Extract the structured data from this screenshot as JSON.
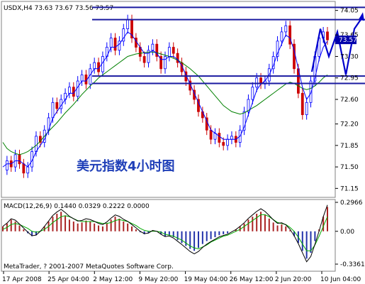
{
  "chart_data": {
    "type": "line",
    "symbol_line": "USDX,H4  73.63 73.67 73.56 73.57",
    "annotation": "美元指数4小时图",
    "price_ticks": [
      "74.05",
      "73.65",
      "73.30",
      "72.95",
      "72.60",
      "72.20",
      "71.85",
      "71.50",
      "71.15"
    ],
    "price_range": [
      71.05,
      74.15
    ],
    "current_price": "73.57",
    "current_price_value": 73.57,
    "price_labels_partial": [
      "73.65"
    ],
    "x_ticks": [
      "17 Apr 2008",
      "25 Apr 04:00",
      "2 May 12:00",
      "9 May 20:00",
      "19 May 04:00",
      "26 May 12:00",
      "2 Jun 20:00",
      "10 Jun 04:00"
    ],
    "close_series": [
      71.45,
      71.6,
      71.5,
      71.7,
      71.55,
      71.4,
      71.5,
      71.75,
      72.0,
      71.9,
      72.1,
      72.3,
      72.55,
      72.45,
      72.6,
      72.7,
      72.8,
      72.65,
      72.9,
      73.0,
      72.85,
      73.1,
      73.2,
      73.05,
      73.3,
      73.45,
      73.6,
      73.4,
      73.55,
      73.75,
      73.9,
      73.6,
      73.45,
      73.3,
      73.2,
      73.4,
      73.5,
      73.3,
      73.1,
      73.3,
      73.45,
      73.35,
      73.2,
      73.05,
      72.9,
      72.75,
      72.6,
      72.4,
      72.3,
      72.1,
      71.95,
      72.05,
      71.9,
      71.85,
      71.95,
      72.0,
      71.9,
      72.1,
      72.4,
      72.6,
      72.8,
      72.95,
      72.85,
      72.9,
      73.1,
      73.3,
      73.55,
      73.7,
      73.8,
      73.5,
      73.1,
      72.7,
      72.35,
      72.55,
      72.9,
      73.3,
      73.6,
      73.7,
      73.57
    ],
    "ma_fast": [
      71.5,
      71.55,
      71.55,
      71.6,
      71.6,
      71.55,
      71.5,
      71.6,
      71.75,
      71.85,
      71.95,
      72.1,
      72.3,
      72.4,
      72.5,
      72.6,
      72.7,
      72.7,
      72.8,
      72.9,
      72.9,
      73.0,
      73.1,
      73.1,
      73.2,
      73.3,
      73.45,
      73.45,
      73.5,
      73.6,
      73.7,
      73.65,
      73.55,
      73.45,
      73.35,
      73.35,
      73.4,
      73.35,
      73.25,
      73.25,
      73.3,
      73.3,
      73.25,
      73.15,
      73.0,
      72.85,
      72.7,
      72.55,
      72.4,
      72.25,
      72.1,
      72.05,
      72.0,
      71.95,
      71.95,
      71.95,
      71.95,
      72.0,
      72.15,
      72.35,
      72.55,
      72.75,
      72.85,
      72.9,
      73.0,
      73.15,
      73.35,
      73.5,
      73.65,
      73.6,
      73.4,
      73.1,
      72.8,
      72.6,
      72.7,
      72.95,
      73.25,
      73.45,
      73.55
    ],
    "ma_slow": [
      71.9,
      71.8,
      71.75,
      71.72,
      71.7,
      71.72,
      71.75,
      71.8,
      71.85,
      71.92,
      72.0,
      72.08,
      72.15,
      72.22,
      72.3,
      72.38,
      72.45,
      72.52,
      72.6,
      72.68,
      72.75,
      72.82,
      72.88,
      72.95,
      73.0,
      73.05,
      73.1,
      73.15,
      73.2,
      73.25,
      73.3,
      73.32,
      73.34,
      73.35,
      73.36,
      73.37,
      73.37,
      73.36,
      73.34,
      73.32,
      73.3,
      73.27,
      73.24,
      73.2,
      73.15,
      73.1,
      73.04,
      72.98,
      72.9,
      72.82,
      72.74,
      72.66,
      72.58,
      72.5,
      72.45,
      72.4,
      72.38,
      72.36,
      72.38,
      72.42,
      72.46,
      72.5,
      72.55,
      72.6,
      72.65,
      72.7,
      72.75,
      72.8,
      72.85,
      72.88,
      72.86,
      72.82,
      72.78,
      72.76,
      72.78,
      72.82,
      72.88,
      72.95,
      73.0
    ],
    "channel_lines": [
      {
        "name": "upper",
        "value": 73.9
      },
      {
        "name": "resistance",
        "value": 74.1
      },
      {
        "name": "support-1",
        "value": 72.98
      },
      {
        "name": "support-2",
        "value": 72.86
      }
    ],
    "projection": [
      73.05,
      73.75,
      73.3,
      73.7,
      73.0,
      73.75,
      73.95
    ],
    "macd": {
      "label": "MACD(12,26,9) 0.1440 0.0329 0.2222 0.0000",
      "ticks": [
        "0.2966",
        "0.00",
        "-0.3361"
      ],
      "range": [
        -0.3361,
        0.2966
      ],
      "histogram": [
        0.05,
        0.08,
        0.12,
        0.1,
        0.06,
        0.02,
        -0.02,
        -0.05,
        -0.04,
        0.0,
        0.05,
        0.1,
        0.15,
        0.18,
        0.2,
        0.16,
        0.12,
        0.1,
        0.08,
        0.09,
        0.11,
        0.1,
        0.08,
        0.06,
        0.05,
        0.08,
        0.12,
        0.15,
        0.13,
        0.1,
        0.08,
        0.05,
        0.02,
        -0.01,
        -0.03,
        -0.02,
        0.01,
        0.0,
        -0.03,
        -0.05,
        -0.04,
        -0.06,
        -0.09,
        -0.12,
        -0.15,
        -0.18,
        -0.2,
        -0.17,
        -0.13,
        -0.1,
        -0.08,
        -0.06,
        -0.04,
        -0.03,
        -0.02,
        0.0,
        0.02,
        0.05,
        0.08,
        0.12,
        0.15,
        0.18,
        0.2,
        0.17,
        0.13,
        0.09,
        0.06,
        0.07,
        0.05,
        0.01,
        -0.05,
        -0.12,
        -0.2,
        -0.28,
        -0.22,
        -0.1,
        0.02,
        0.15,
        0.25
      ],
      "signal": [
        0.02,
        0.04,
        0.07,
        0.08,
        0.07,
        0.05,
        0.03,
        0.0,
        -0.01,
        0.0,
        0.02,
        0.05,
        0.09,
        0.12,
        0.15,
        0.16,
        0.15,
        0.13,
        0.11,
        0.1,
        0.1,
        0.1,
        0.1,
        0.09,
        0.08,
        0.08,
        0.09,
        0.11,
        0.12,
        0.11,
        0.1,
        0.08,
        0.06,
        0.03,
        0.01,
        0.0,
        0.0,
        0.0,
        -0.01,
        -0.03,
        -0.04,
        -0.05,
        -0.07,
        -0.09,
        -0.12,
        -0.15,
        -0.17,
        -0.18,
        -0.16,
        -0.14,
        -0.11,
        -0.09,
        -0.07,
        -0.05,
        -0.04,
        -0.02,
        0.0,
        0.02,
        0.05,
        0.08,
        0.11,
        0.14,
        0.17,
        0.17,
        0.15,
        0.12,
        0.09,
        0.08,
        0.07,
        0.04,
        0.0,
        -0.06,
        -0.13,
        -0.2,
        -0.2,
        -0.14,
        -0.05,
        0.05,
        0.15
      ]
    },
    "copyright": "MetaTrader, ? 2001-2007 MetaQuotes Software Corp."
  },
  "colors": {
    "background": "#ffffff",
    "panel_border": "#808080",
    "channel": "#1a1aa0",
    "projection": "#0000cc",
    "candle_up": "#0000ff",
    "candle_down": "#cc0000",
    "ma_fast": "#0000ff",
    "ma_slow": "#008000",
    "macd_hist": "#aa2222",
    "macd_signal": "#00aa00",
    "macd_main": "#000000",
    "annotation": "#1f3fb8"
  }
}
